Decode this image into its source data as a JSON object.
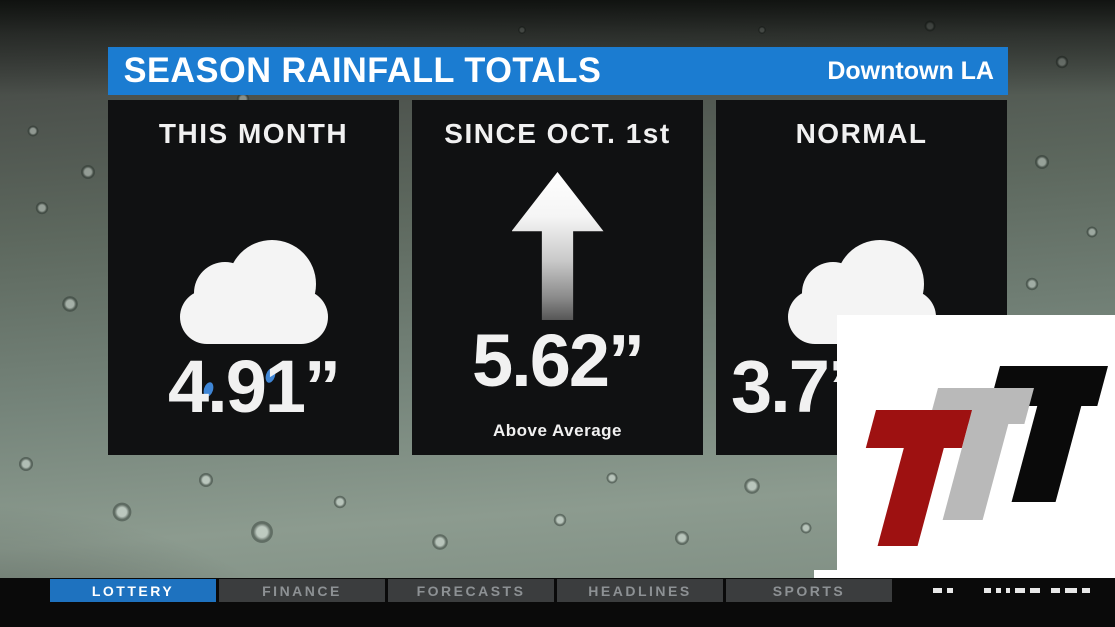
{
  "header": {
    "title": "SEASON RAINFALL TOTALS",
    "location": "Downtown LA",
    "bar_color": "#1b7cd1",
    "text_color": "#ffffff"
  },
  "panels": [
    {
      "title": "THIS MONTH",
      "icon": "rain-cloud-icon",
      "value": "4.91”"
    },
    {
      "title": "SINCE OCT. 1st",
      "icon": "up-arrow-icon",
      "value": "5.62”",
      "note": "Above Average"
    },
    {
      "title": "NORMAL",
      "icon": "drizzle-cloud-icon",
      "value": "3.7”",
      "occluded_by_logo": true
    }
  ],
  "ticker": {
    "items": [
      {
        "label": "LOTTERY",
        "active": true
      },
      {
        "label": "FINANCE",
        "active": false
      },
      {
        "label": "FORECASTS",
        "active": false
      },
      {
        "label": "HEADLINES",
        "active": false
      },
      {
        "label": "SPORTS",
        "active": false
      }
    ],
    "active_color": "#1e72bf"
  },
  "logo_overlay": {
    "description": "white box with three slanted T letters",
    "letter_colors": [
      "#9e1111",
      "#b9b9b9",
      "#0a0a0a"
    ]
  },
  "colors": {
    "panel_bg": "#101112",
    "value_text": "#f1f1f1",
    "raindrop_blue": "#3f86d6",
    "drizzle_blue": "#86c3ea"
  },
  "chart_data": {
    "type": "table",
    "title": "SEASON RAINFALL TOTALS",
    "location": "Downtown LA",
    "categories": [
      "THIS MONTH",
      "SINCE OCT. 1st",
      "NORMAL"
    ],
    "values_inches": [
      4.91,
      5.62,
      3.7
    ],
    "annotations": [
      "",
      "Above Average",
      "value partially hidden by logo overlay"
    ],
    "unit": "inches"
  }
}
